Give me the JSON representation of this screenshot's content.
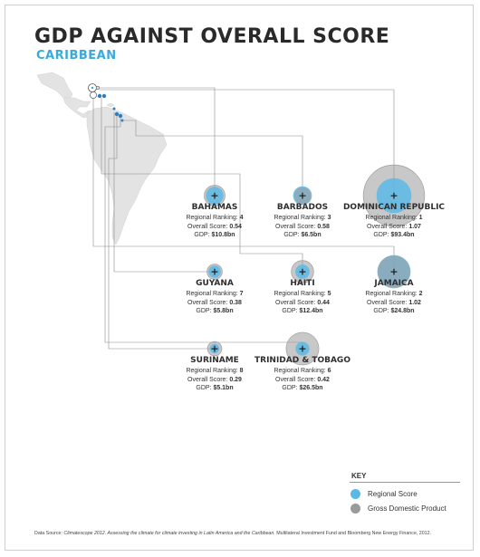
{
  "header": {
    "title": "GDP AGAINST OVERALL SCORE",
    "subtitle": "CARIBBEAN"
  },
  "labels": {
    "ranking": "Regional Ranking: ",
    "score": "Overall Score: ",
    "gdp": "GDP: "
  },
  "chart_data": {
    "type": "scatter",
    "title": "GDP AGAINST OVERALL SCORE",
    "subtitle": "CARIBBEAN",
    "series": [
      {
        "name": "Regional Score",
        "color": "#5bb8e6"
      },
      {
        "name": "Gross Domestic Product",
        "color": "#9a9a9a"
      }
    ],
    "countries": [
      {
        "name": "BAHAMAS",
        "ranking": "4",
        "score": "0.54",
        "gdp": "$10.8bn",
        "score_value": 0.54,
        "gdp_value": 10.8
      },
      {
        "name": "BARBADOS",
        "ranking": "3",
        "score": "0.58",
        "gdp": "$6.5bn",
        "score_value": 0.58,
        "gdp_value": 6.5
      },
      {
        "name": "DOMINICAN REPUBLIC",
        "ranking": "1",
        "score": "1.07",
        "gdp": "$93.4bn",
        "score_value": 1.07,
        "gdp_value": 93.4
      },
      {
        "name": "GUYANA",
        "ranking": "7",
        "score": "0.38",
        "gdp": "$5.8bn",
        "score_value": 0.38,
        "gdp_value": 5.8
      },
      {
        "name": "HAITI",
        "ranking": "5",
        "score": "0.44",
        "gdp": "$12.4bn",
        "score_value": 0.44,
        "gdp_value": 12.4
      },
      {
        "name": "JAMAICA",
        "ranking": "2",
        "score": "1.02",
        "gdp": "$24.8bn",
        "score_value": 1.02,
        "gdp_value": 24.8
      },
      {
        "name": "SURINAME",
        "ranking": "8",
        "score": "0.29",
        "gdp": "$5.1bn",
        "score_value": 0.29,
        "gdp_value": 5.1
      },
      {
        "name": "TRINIDAD & TOBAGO",
        "ranking": "6",
        "score": "0.42",
        "gdp": "$26.5bn",
        "score_value": 0.42,
        "gdp_value": 26.5
      }
    ],
    "legend": [
      "Regional Score",
      "Gross Domestic Product"
    ],
    "legend_title": "KEY",
    "legend_position": "bottom-right"
  },
  "key": {
    "title": "KEY",
    "regional_score": "Regional Score",
    "gdp": "Gross Domestic Product",
    "score_color": "#5bb8e6",
    "gdp_color": "#9a9a9a"
  },
  "source": {
    "prefix": "Data Source: ",
    "italic": "Climatescope 2012. Assessing the climate for climate investing in Latin America and the Caribbean.",
    "rest": " Multilateral Investment Fund and Bloomberg New Energy Finance, 2012."
  }
}
